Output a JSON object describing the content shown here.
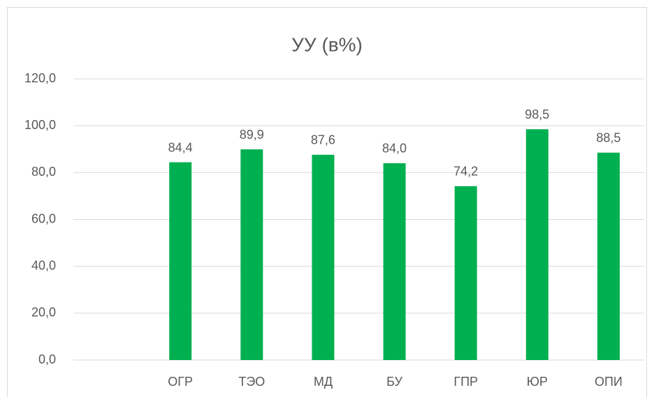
{
  "chart_data": {
    "type": "bar",
    "title": "УУ (в%)",
    "categories": [
      null,
      "ОГР",
      "ТЭО",
      "МД",
      "БУ",
      "ГПР",
      "ЮР",
      "ОПИ"
    ],
    "values": [
      null,
      84.4,
      89.9,
      87.6,
      84.0,
      74.2,
      98.5,
      88.5
    ],
    "value_labels": [
      null,
      "84,4",
      "89,9",
      "87,6",
      "84,0",
      "74,2",
      "98,5",
      "88,5"
    ],
    "color": "#00b050",
    "ylim": [
      0,
      120
    ],
    "yticks": [
      {
        "value": 0,
        "label": "0,0"
      },
      {
        "value": 20,
        "label": "20,0"
      },
      {
        "value": 40,
        "label": "40,0"
      },
      {
        "value": 60,
        "label": "60,0"
      },
      {
        "value": 80,
        "label": "80,0"
      },
      {
        "value": 100,
        "label": "100,0"
      },
      {
        "value": 120,
        "label": "120,0"
      }
    ],
    "grid": true
  }
}
